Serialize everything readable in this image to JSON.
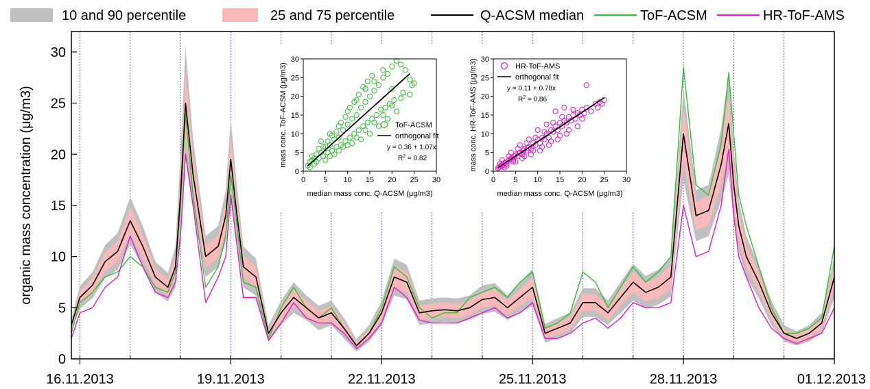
{
  "legend": {
    "p10_90": "10 and 90 percentile",
    "p25_75": "25 and 75 percentile",
    "median": "Q-ACSM median",
    "tof": "ToF-ACSM",
    "hr": "HR-ToF-AMS"
  },
  "colors": {
    "p10_90": "#c0c0c0",
    "p25_75": "#f9b9b9",
    "median": "#000000",
    "tof": "#2ec02e",
    "hr": "#ee14cc",
    "day_lines": "#3535d8"
  },
  "chart_data": [
    {
      "type": "area",
      "ylabel": "organic mass concentration (μg/m3)",
      "ylim": [
        0,
        32
      ],
      "yticks": [
        0,
        5,
        10,
        15,
        20,
        25,
        30
      ],
      "x_start": "15.11.2013 20:00",
      "x_end": "01.12.2013 00:00",
      "xlim": [
        -0.17,
        15.0
      ],
      "xtick_labels": [
        "16.11.2013",
        "19.11.2013",
        "22.11.2013",
        "25.11.2013",
        "28.11.2013",
        "01.12.2013"
      ],
      "xtick_days": [
        0,
        3,
        6,
        9,
        12,
        15
      ],
      "day_lines": [
        0,
        1,
        2,
        3,
        4,
        5,
        6,
        7,
        8,
        9,
        10,
        11,
        12,
        13,
        14
      ],
      "days": [
        -0.17,
        0,
        0.25,
        0.5,
        0.75,
        1.0,
        1.25,
        1.5,
        1.75,
        1.9,
        2.0,
        2.1,
        2.25,
        2.5,
        2.75,
        2.9,
        3.0,
        3.1,
        3.25,
        3.5,
        3.75,
        4.0,
        4.25,
        4.5,
        4.75,
        5.0,
        5.25,
        5.5,
        5.75,
        6.0,
        6.25,
        6.5,
        6.75,
        7.0,
        7.25,
        7.5,
        7.75,
        8.0,
        8.25,
        8.5,
        8.75,
        9.0,
        9.25,
        9.5,
        9.75,
        10.0,
        10.25,
        10.5,
        10.75,
        11.0,
        11.25,
        11.5,
        11.75,
        12.0,
        12.25,
        12.5,
        12.75,
        12.9,
        13.0,
        13.1,
        13.25,
        13.5,
        13.75,
        14.0,
        14.25,
        14.5,
        14.75,
        15.0
      ],
      "series": [
        {
          "name": "Q-ACSM median",
          "role": "median",
          "values": [
            3.3,
            6.0,
            7.2,
            9.5,
            10.5,
            13.5,
            11.0,
            8.0,
            7.0,
            9.0,
            16.0,
            25.0,
            18.0,
            10.0,
            11.0,
            14.0,
            19.5,
            15.0,
            9.0,
            8.0,
            2.5,
            4.5,
            6.0,
            5.0,
            4.0,
            4.5,
            3.0,
            1.3,
            2.5,
            4.5,
            8.0,
            7.5,
            4.5,
            4.7,
            4.8,
            4.7,
            5.0,
            5.8,
            6.0,
            5.0,
            6.0,
            7.0,
            2.5,
            3.0,
            3.5,
            5.5,
            5.5,
            4.5,
            6.0,
            7.5,
            6.5,
            7.0,
            8.0,
            22.0,
            14.0,
            14.5,
            19.0,
            23.0,
            17.0,
            13.0,
            10.0,
            7.5,
            4.5,
            2.5,
            2.0,
            2.5,
            3.5,
            8.0
          ]
        },
        {
          "name": "ToF-ACSM",
          "role": "tof",
          "values": [
            2.5,
            5.5,
            6.5,
            8.0,
            8.5,
            10.0,
            9.0,
            7.0,
            6.5,
            8.5,
            15.0,
            24.0,
            16.0,
            7.0,
            9.0,
            12.0,
            18.0,
            14.0,
            7.5,
            7.0,
            2.0,
            5.0,
            7.0,
            5.0,
            4.0,
            5.0,
            3.0,
            1.2,
            2.5,
            5.0,
            9.0,
            8.0,
            5.0,
            4.0,
            4.5,
            4.5,
            6.0,
            6.5,
            7.0,
            6.0,
            7.5,
            8.5,
            3.0,
            3.5,
            4.5,
            8.5,
            7.5,
            5.0,
            7.0,
            9.0,
            7.5,
            8.5,
            10.0,
            28.5,
            17.0,
            16.0,
            21.0,
            28.0,
            22.0,
            16.0,
            13.0,
            9.0,
            5.0,
            2.5,
            2.5,
            3.0,
            4.0,
            11.0
          ]
        },
        {
          "name": "HR-ToF-AMS",
          "role": "hr",
          "values": [
            2.0,
            4.5,
            5.0,
            7.0,
            8.0,
            12.0,
            9.0,
            6.5,
            6.0,
            7.5,
            12.0,
            20.0,
            15.0,
            5.5,
            8.0,
            10.0,
            16.0,
            12.0,
            6.0,
            6.0,
            1.8,
            3.5,
            5.5,
            4.0,
            3.5,
            3.5,
            2.5,
            1.0,
            2.0,
            3.5,
            7.0,
            6.0,
            3.8,
            3.5,
            3.5,
            3.5,
            4.0,
            4.5,
            5.0,
            4.0,
            4.5,
            5.5,
            2.0,
            2.0,
            2.5,
            3.5,
            4.0,
            3.0,
            4.0,
            5.5,
            5.0,
            5.0,
            5.5,
            15.0,
            10.0,
            10.5,
            15.0,
            20.5,
            14.0,
            10.0,
            8.0,
            5.0,
            3.0,
            2.0,
            1.5,
            2.0,
            2.5,
            5.0
          ]
        }
      ],
      "band_10_90_spread": [
        0.6,
        1.1,
        1.3,
        1.6,
        1.8,
        2.3,
        2.0,
        1.5,
        1.4,
        2.0,
        4.0,
        5.5,
        3.5,
        2.0,
        2.0,
        2.5,
        4.0,
        3.0,
        2.0,
        1.8,
        0.8,
        1.2,
        1.5,
        1.2,
        1.2,
        1.2,
        1.0,
        0.6,
        0.8,
        1.2,
        1.8,
        1.7,
        1.2,
        1.2,
        1.2,
        1.2,
        1.2,
        1.4,
        1.4,
        1.2,
        1.5,
        1.8,
        0.9,
        1.0,
        1.0,
        1.4,
        1.4,
        1.2,
        1.5,
        1.8,
        1.6,
        1.7,
        1.9,
        4.5,
        2.5,
        2.5,
        3.5,
        5.0,
        3.5,
        2.5,
        2.0,
        1.6,
        1.2,
        0.8,
        0.7,
        0.8,
        1.0,
        2.0
      ],
      "band_25_75_spread": [
        0.3,
        0.6,
        0.7,
        0.9,
        1.0,
        1.3,
        1.1,
        0.8,
        0.8,
        1.1,
        2.2,
        3.2,
        2.0,
        1.1,
        1.1,
        1.4,
        2.2,
        1.7,
        1.1,
        1.0,
        0.4,
        0.7,
        0.8,
        0.7,
        0.7,
        0.7,
        0.6,
        0.3,
        0.4,
        0.7,
        1.0,
        1.0,
        0.7,
        0.7,
        0.7,
        0.7,
        0.7,
        0.8,
        0.8,
        0.7,
        0.8,
        1.0,
        0.5,
        0.6,
        0.6,
        0.8,
        0.8,
        0.7,
        0.8,
        1.0,
        0.9,
        1.0,
        1.1,
        2.5,
        1.4,
        1.4,
        2.0,
        2.8,
        2.0,
        1.4,
        1.1,
        0.9,
        0.7,
        0.4,
        0.4,
        0.4,
        0.6,
        1.1
      ]
    },
    {
      "type": "scatter",
      "xlabel": "median mass conc. Q-ACSM (μg/m3)",
      "ylabel": "mass conc. ToF-ACSM (μg/m3)",
      "xlim": [
        0,
        30
      ],
      "ylim": [
        0,
        30
      ],
      "xticks": [
        0,
        5,
        10,
        15,
        20,
        25,
        30
      ],
      "yticks": [
        0,
        5,
        10,
        15,
        20,
        25,
        30
      ],
      "legend_position": "bottom-right",
      "legend": {
        "points": "ToF-ACSM",
        "fit": "orthogonal fit"
      },
      "equation": "y = 0.36 + 1.07x",
      "r2_label": "R",
      "r2_value": "= 0.82",
      "fit": {
        "intercept": 0.36,
        "slope": 1.07,
        "x_range": [
          1,
          24
        ]
      },
      "points": [
        [
          1.0,
          1.5
        ],
        [
          1.5,
          2.5
        ],
        [
          2.0,
          3.0
        ],
        [
          2.5,
          2.0
        ],
        [
          3.0,
          4.5
        ],
        [
          3.5,
          3.5
        ],
        [
          4.0,
          5.0
        ],
        [
          4.5,
          4.0
        ],
        [
          5.0,
          6.5
        ],
        [
          5.5,
          5.0
        ],
        [
          6.0,
          7.0
        ],
        [
          6.5,
          5.5
        ],
        [
          7.0,
          8.5
        ],
        [
          7.5,
          6.5
        ],
        [
          8.0,
          9.0
        ],
        [
          8.5,
          7.0
        ],
        [
          9.0,
          11.0
        ],
        [
          9.5,
          8.0
        ],
        [
          10.0,
          12.5
        ],
        [
          10.5,
          9.0
        ],
        [
          11.0,
          14.0
        ],
        [
          11.5,
          10.0
        ],
        [
          12.0,
          15.0
        ],
        [
          12.5,
          11.0
        ],
        [
          13.0,
          17.0
        ],
        [
          13.5,
          12.0
        ],
        [
          14.0,
          18.5
        ],
        [
          14.5,
          13.0
        ],
        [
          15.0,
          20.0
        ],
        [
          15.5,
          14.0
        ],
        [
          16.0,
          21.5
        ],
        [
          16.5,
          15.0
        ],
        [
          17.0,
          23.0
        ],
        [
          17.5,
          16.5
        ],
        [
          18.0,
          25.0
        ],
        [
          18.5,
          17.0
        ],
        [
          19.0,
          26.0
        ],
        [
          19.5,
          18.0
        ],
        [
          20.0,
          28.0
        ],
        [
          20.5,
          19.0
        ],
        [
          21.0,
          29.5
        ],
        [
          22.0,
          28.5
        ],
        [
          22.5,
          21.0
        ],
        [
          23.0,
          27.0
        ],
        [
          24.0,
          24.5
        ],
        [
          24.5,
          23.0
        ],
        [
          25.0,
          23.5
        ],
        [
          4.0,
          8.0
        ],
        [
          5.0,
          3.0
        ],
        [
          6.0,
          10.0
        ],
        [
          7.0,
          4.5
        ],
        [
          8.0,
          12.0
        ],
        [
          9.0,
          6.5
        ],
        [
          10.0,
          16.0
        ],
        [
          11.0,
          7.5
        ],
        [
          12.0,
          19.0
        ],
        [
          13.0,
          8.5
        ],
        [
          14.0,
          22.0
        ],
        [
          15.0,
          10.0
        ],
        [
          16.0,
          24.0
        ],
        [
          17.0,
          12.0
        ],
        [
          18.0,
          27.0
        ],
        [
          19.0,
          14.0
        ],
        [
          20.0,
          22.0
        ],
        [
          21.0,
          16.0
        ],
        [
          2.0,
          4.0
        ],
        [
          3.0,
          2.5
        ],
        [
          3.5,
          6.0
        ],
        [
          4.5,
          6.5
        ],
        [
          5.5,
          8.0
        ],
        [
          6.5,
          9.5
        ],
        [
          7.5,
          10.5
        ],
        [
          8.5,
          13.0
        ],
        [
          9.5,
          14.5
        ],
        [
          10.5,
          17.0
        ],
        [
          11.5,
          18.5
        ],
        [
          12.5,
          20.5
        ],
        [
          13.5,
          22.5
        ],
        [
          14.5,
          24.0
        ],
        [
          15.5,
          25.5
        ],
        [
          1.5,
          1.0
        ],
        [
          2.5,
          3.5
        ],
        [
          6.0,
          4.0
        ],
        [
          8.0,
          5.5
        ],
        [
          10.0,
          7.0
        ],
        [
          12.0,
          9.0
        ],
        [
          14.0,
          11.0
        ],
        [
          16.0,
          13.0
        ],
        [
          18.0,
          15.0
        ],
        [
          20.0,
          17.5
        ],
        [
          22.0,
          19.5
        ],
        [
          24.0,
          20.5
        ]
      ]
    },
    {
      "type": "scatter",
      "xlabel": "median mass conc. Q-ACSM (μg/m3)",
      "ylabel": "mass conc. HR-ToF-AMS (μg/m3)",
      "xlim": [
        0,
        30
      ],
      "ylim": [
        0,
        30
      ],
      "xticks": [
        0,
        5,
        10,
        15,
        20,
        25,
        30
      ],
      "yticks": [
        0,
        5,
        10,
        15,
        20,
        25,
        30
      ],
      "legend_position": "top-left",
      "legend": {
        "points": "HR-ToF-AMS",
        "fit": "orthogonal fit"
      },
      "equation": "y = 0.11 + 0.78x",
      "r2_label": "R",
      "r2_value": "= 0.86",
      "fit": {
        "intercept": 0.11,
        "slope": 0.78,
        "x_range": [
          1,
          25
        ]
      },
      "points": [
        [
          1.0,
          0.8
        ],
        [
          1.5,
          1.2
        ],
        [
          2.0,
          1.5
        ],
        [
          2.5,
          2.2
        ],
        [
          3.0,
          2.0
        ],
        [
          3.5,
          3.0
        ],
        [
          4.0,
          3.5
        ],
        [
          4.5,
          3.0
        ],
        [
          5.0,
          4.5
        ],
        [
          5.5,
          4.0
        ],
        [
          6.0,
          5.0
        ],
        [
          6.5,
          4.5
        ],
        [
          7.0,
          6.0
        ],
        [
          7.5,
          5.5
        ],
        [
          8.0,
          6.5
        ],
        [
          8.5,
          6.0
        ],
        [
          9.0,
          7.5
        ],
        [
          9.5,
          7.0
        ],
        [
          10.0,
          8.5
        ],
        [
          10.5,
          7.5
        ],
        [
          11.0,
          9.0
        ],
        [
          11.5,
          8.5
        ],
        [
          12.0,
          10.0
        ],
        [
          12.5,
          9.0
        ],
        [
          13.0,
          11.0
        ],
        [
          13.5,
          10.5
        ],
        [
          14.0,
          12.0
        ],
        [
          14.5,
          11.0
        ],
        [
          15.0,
          13.0
        ],
        [
          15.5,
          12.0
        ],
        [
          16.0,
          13.5
        ],
        [
          16.5,
          13.0
        ],
        [
          17.0,
          14.5
        ],
        [
          17.5,
          13.5
        ],
        [
          18.0,
          15.0
        ],
        [
          18.5,
          14.0
        ],
        [
          19.0,
          15.5
        ],
        [
          19.5,
          15.0
        ],
        [
          20.0,
          16.5
        ],
        [
          20.5,
          15.5
        ],
        [
          21.0,
          17.0
        ],
        [
          22.0,
          16.0
        ],
        [
          23.0,
          18.0
        ],
        [
          24.0,
          18.5
        ],
        [
          25.0,
          19.0
        ],
        [
          21.0,
          23.0
        ],
        [
          2.0,
          3.0
        ],
        [
          3.0,
          1.5
        ],
        [
          4.0,
          5.0
        ],
        [
          5.0,
          2.5
        ],
        [
          6.0,
          7.0
        ],
        [
          7.0,
          4.0
        ],
        [
          8.0,
          8.5
        ],
        [
          9.0,
          5.5
        ],
        [
          10.0,
          11.0
        ],
        [
          11.0,
          6.5
        ],
        [
          12.0,
          12.5
        ],
        [
          13.0,
          8.0
        ],
        [
          14.0,
          16.0
        ],
        [
          15.0,
          9.5
        ],
        [
          16.0,
          17.0
        ],
        [
          17.0,
          11.0
        ],
        [
          18.0,
          16.5
        ],
        [
          19.0,
          12.0
        ],
        [
          20.0,
          14.0
        ],
        [
          1.5,
          2.0
        ],
        [
          2.5,
          1.0
        ],
        [
          3.5,
          4.0
        ],
        [
          4.5,
          2.5
        ],
        [
          5.5,
          6.0
        ],
        [
          6.5,
          3.5
        ],
        [
          7.5,
          7.5
        ],
        [
          8.5,
          4.5
        ],
        [
          9.5,
          9.0
        ],
        [
          10.5,
          5.5
        ],
        [
          11.5,
          10.5
        ],
        [
          12.5,
          7.0
        ],
        [
          13.5,
          13.0
        ],
        [
          14.5,
          8.5
        ],
        [
          15.5,
          14.5
        ],
        [
          16.5,
          10.0
        ],
        [
          23.5,
          17.0
        ],
        [
          24.5,
          18.0
        ],
        [
          1.2,
          1.0
        ],
        [
          1.8,
          1.6
        ],
        [
          2.8,
          2.4
        ],
        [
          3.8,
          3.2
        ],
        [
          4.8,
          4.0
        ],
        [
          5.8,
          4.8
        ],
        [
          6.8,
          5.6
        ],
        [
          7.8,
          6.2
        ]
      ]
    }
  ]
}
